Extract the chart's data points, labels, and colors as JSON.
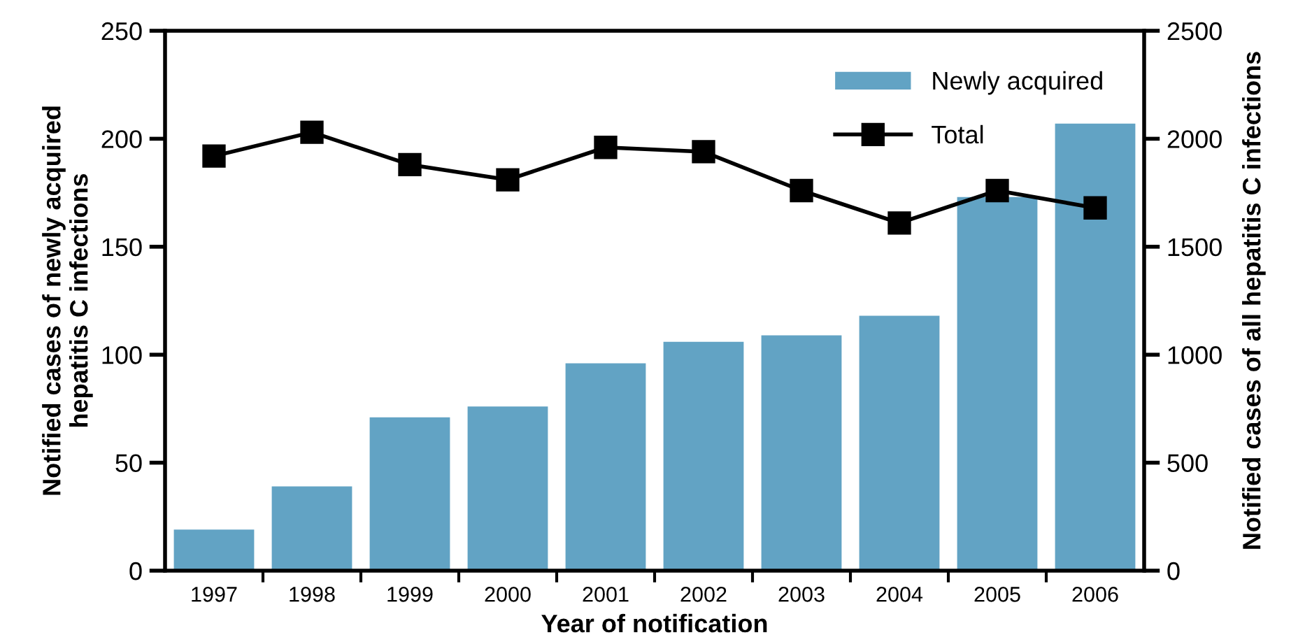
{
  "chart_data": {
    "type": "bar",
    "xlabel": "Year of notification",
    "ylabel": "Notified cases of newly acquired\nhepatitis C infections",
    "y2label": "Notified cases of all hepatitis C infections",
    "categories": [
      "1997",
      "1998",
      "1999",
      "2000",
      "2001",
      "2002",
      "2003",
      "2004",
      "2005",
      "2006"
    ],
    "series": [
      {
        "name": "Newly acquired",
        "color": "#62a3c4",
        "values": [
          19,
          39,
          71,
          76,
          96,
          106,
          109,
          118,
          173,
          207
        ]
      },
      {
        "name": "Total",
        "type": "line",
        "axis": "y2",
        "color": "#000000",
        "marker": "square",
        "line_style": "solid",
        "values": [
          1920,
          2030,
          1880,
          1810,
          1960,
          1940,
          1760,
          1610,
          1760,
          1680
        ]
      }
    ],
    "ylim": [
      0,
      250
    ],
    "yticks": [
      0,
      50,
      100,
      150,
      200,
      250
    ],
    "y2lim": [
      0,
      2500
    ],
    "y2ticks": [
      0,
      500,
      1000,
      1500,
      2000,
      2500
    ],
    "grid": false,
    "legend": "top right"
  }
}
